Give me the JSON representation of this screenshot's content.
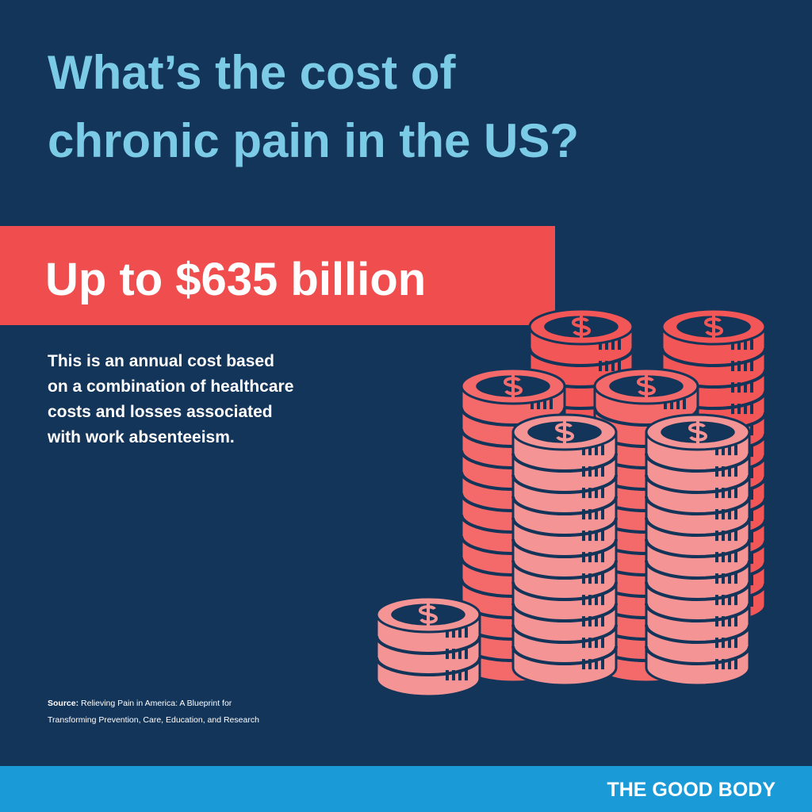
{
  "header": {
    "title_lines": [
      "What’s the cost of",
      "chronic pain in the US?"
    ]
  },
  "highlight": "Up to $635 billion",
  "description_lines": [
    "This is an annual cost based",
    "on a combination of healthcare",
    "costs and losses associated",
    "with work absenteeism."
  ],
  "source": {
    "label": "Source:",
    "lines": [
      "Relieving Pain in America: A Blueprint for",
      "Transforming Prevention, Care, Education, and Research"
    ]
  },
  "footer": {
    "brand": "THE GOOD BODY"
  }
}
